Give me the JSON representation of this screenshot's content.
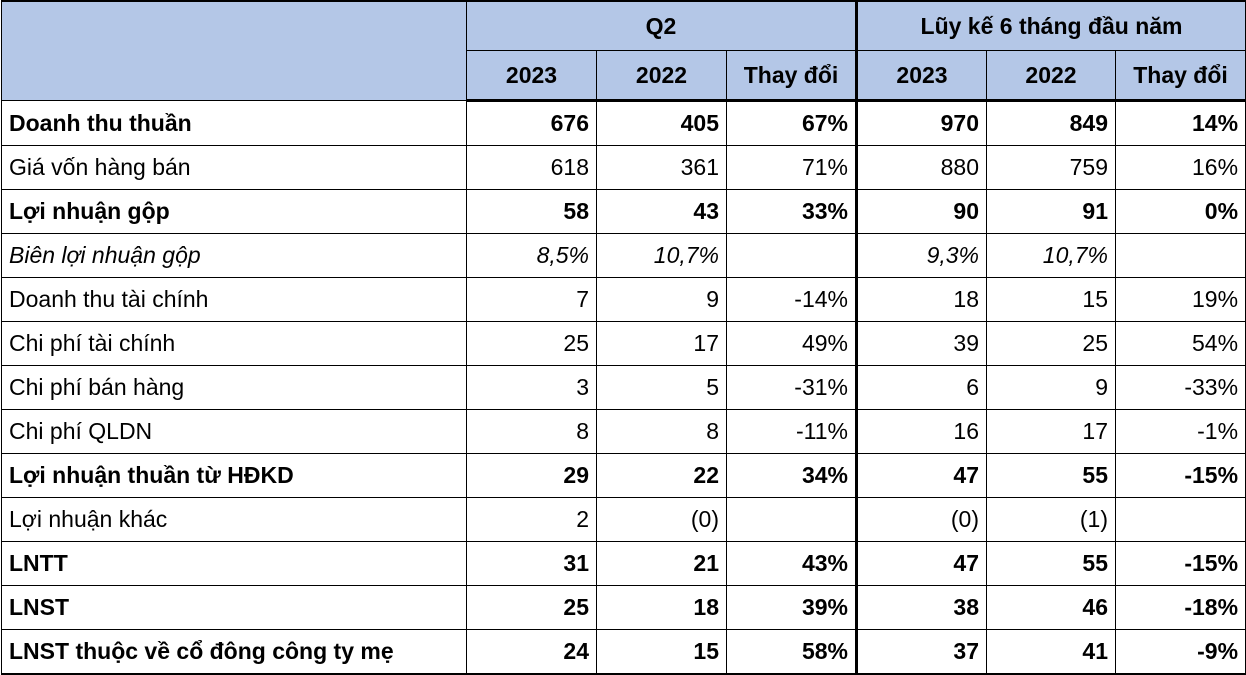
{
  "header": {
    "group_q2": "Q2",
    "group_ytd": "Lũy kế 6 tháng đầu năm",
    "col_2023": "2023",
    "col_2022": "2022",
    "col_change": "Thay đổi"
  },
  "rows": [
    {
      "label": "Doanh thu thuần",
      "bold": true,
      "italic": false,
      "q2_2023": "676",
      "q2_2022": "405",
      "q2_change": "67%",
      "ytd_2023": "970",
      "ytd_2022": "849",
      "ytd_change": "14%"
    },
    {
      "label": "Giá vốn hàng bán",
      "bold": false,
      "italic": false,
      "q2_2023": "618",
      "q2_2022": "361",
      "q2_change": "71%",
      "ytd_2023": "880",
      "ytd_2022": "759",
      "ytd_change": "16%"
    },
    {
      "label": "Lợi nhuận gộp",
      "bold": true,
      "italic": false,
      "q2_2023": "58",
      "q2_2022": "43",
      "q2_change": "33%",
      "ytd_2023": "90",
      "ytd_2022": "91",
      "ytd_change": "0%"
    },
    {
      "label": "Biên lợi nhuận gộp",
      "bold": false,
      "italic": true,
      "q2_2023": "8,5%",
      "q2_2022": "10,7%",
      "q2_change": "",
      "ytd_2023": "9,3%",
      "ytd_2022": "10,7%",
      "ytd_change": ""
    },
    {
      "label": "Doanh thu tài chính",
      "bold": false,
      "italic": false,
      "q2_2023": "7",
      "q2_2022": "9",
      "q2_change": "-14%",
      "ytd_2023": "18",
      "ytd_2022": "15",
      "ytd_change": "19%"
    },
    {
      "label": "Chi phí tài chính",
      "bold": false,
      "italic": false,
      "q2_2023": "25",
      "q2_2022": "17",
      "q2_change": "49%",
      "ytd_2023": "39",
      "ytd_2022": "25",
      "ytd_change": "54%"
    },
    {
      "label": "Chi phí bán hàng",
      "bold": false,
      "italic": false,
      "q2_2023": "3",
      "q2_2022": "5",
      "q2_change": "-31%",
      "ytd_2023": "6",
      "ytd_2022": "9",
      "ytd_change": "-33%"
    },
    {
      "label": "Chi phí QLDN",
      "bold": false,
      "italic": false,
      "q2_2023": "8",
      "q2_2022": "8",
      "q2_change": "-11%",
      "ytd_2023": "16",
      "ytd_2022": "17",
      "ytd_change": "-1%"
    },
    {
      "label": "Lợi nhuận thuần từ HĐKD",
      "bold": true,
      "italic": false,
      "q2_2023": "29",
      "q2_2022": "22",
      "q2_change": "34%",
      "ytd_2023": "47",
      "ytd_2022": "55",
      "ytd_change": "-15%"
    },
    {
      "label": "Lợi nhuận khác",
      "bold": false,
      "italic": false,
      "q2_2023": "2",
      "q2_2022": "(0)",
      "q2_change": "",
      "ytd_2023": "(0)",
      "ytd_2022": "(1)",
      "ytd_change": ""
    },
    {
      "label": "LNTT",
      "bold": true,
      "italic": false,
      "q2_2023": "31",
      "q2_2022": "21",
      "q2_change": "43%",
      "ytd_2023": "47",
      "ytd_2022": "55",
      "ytd_change": "-15%"
    },
    {
      "label": "LNST",
      "bold": true,
      "italic": false,
      "q2_2023": "25",
      "q2_2022": "18",
      "q2_change": "39%",
      "ytd_2023": "38",
      "ytd_2022": "46",
      "ytd_change": "-18%"
    },
    {
      "label": "LNST thuộc về cổ đông công ty mẹ",
      "bold": true,
      "italic": false,
      "q2_2023": "24",
      "q2_2022": "15",
      "q2_change": "58%",
      "ytd_2023": "37",
      "ytd_2022": "41",
      "ytd_change": "-9%"
    }
  ],
  "colors": {
    "header_bg": "#b4c7e7",
    "border": "#000000"
  }
}
